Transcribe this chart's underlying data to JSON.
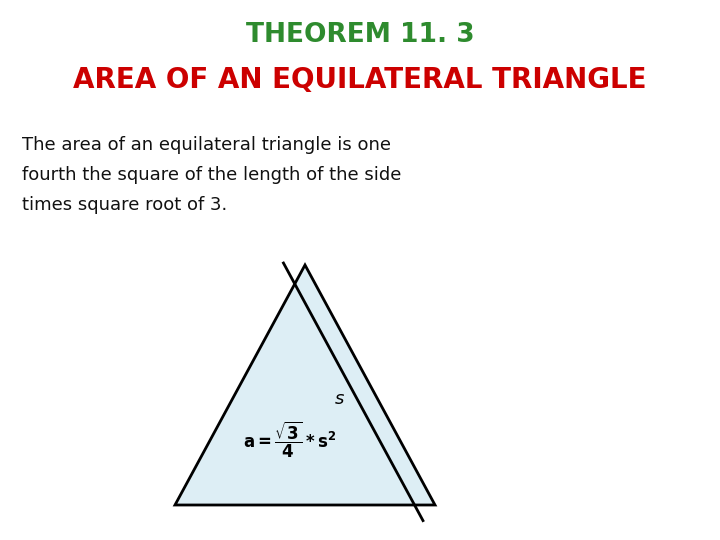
{
  "title_line1": "THEOREM 11. 3",
  "title_line2": "AREA OF AN EQUILATERAL TRIANGLE",
  "title_line1_color": "#2e8b2e",
  "title_line2_color": "#cc0000",
  "body_text_line1": "The area of an equilateral triangle is one",
  "body_text_line2": "fourth the square of the length of the side",
  "body_text_line3": "times square root of 3.",
  "body_text_color": "#111111",
  "bg_color": "#ffffff",
  "triangle_fill": "#ddeef5",
  "triangle_edge": "#000000",
  "s_label": "s"
}
